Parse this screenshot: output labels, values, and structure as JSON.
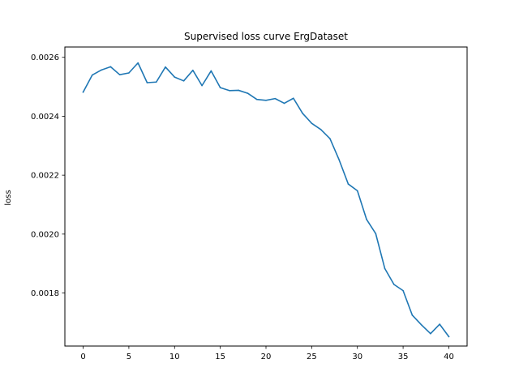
{
  "chart_data": {
    "type": "line",
    "title": "Supervised loss curve ErgDataset",
    "xlabel": "",
    "ylabel": "loss",
    "xlim": [
      -2,
      42
    ],
    "ylim": [
      0.00162,
      0.002635
    ],
    "x_ticks": [
      0,
      5,
      10,
      15,
      20,
      25,
      30,
      35,
      40
    ],
    "y_ticks": [
      0.0018,
      0.002,
      0.0022,
      0.0024,
      0.0026
    ],
    "x_tick_labels": [
      "0",
      "5",
      "10",
      "15",
      "20",
      "25",
      "30",
      "35",
      "40"
    ],
    "y_tick_labels": [
      "0.0018",
      "0.0020",
      "0.0022",
      "0.0024",
      "0.0026"
    ],
    "grid": false,
    "series": [
      {
        "name": "",
        "color": "#1f77b4",
        "x": [
          0,
          1,
          2,
          3,
          4,
          5,
          6,
          7,
          8,
          9,
          10,
          11,
          12,
          13,
          14,
          15,
          16,
          17,
          18,
          19,
          20,
          21,
          22,
          23,
          24,
          25,
          26,
          27,
          28,
          29,
          30,
          31,
          32,
          33,
          34,
          35,
          36,
          37,
          38,
          39,
          40
        ],
        "y": [
          0.002482,
          0.00254,
          0.002557,
          0.002568,
          0.002541,
          0.002547,
          0.002581,
          0.002514,
          0.002516,
          0.002567,
          0.002533,
          0.00252,
          0.002556,
          0.002504,
          0.002554,
          0.002497,
          0.002487,
          0.002488,
          0.002478,
          0.002457,
          0.002454,
          0.00246,
          0.002444,
          0.002461,
          0.00241,
          0.002376,
          0.002355,
          0.002324,
          0.002252,
          0.00217,
          0.002147,
          0.00205,
          0.002002,
          0.001883,
          0.001829,
          0.001808,
          0.001725,
          0.001692,
          0.001662,
          0.001694,
          0.001652
        ]
      }
    ]
  }
}
